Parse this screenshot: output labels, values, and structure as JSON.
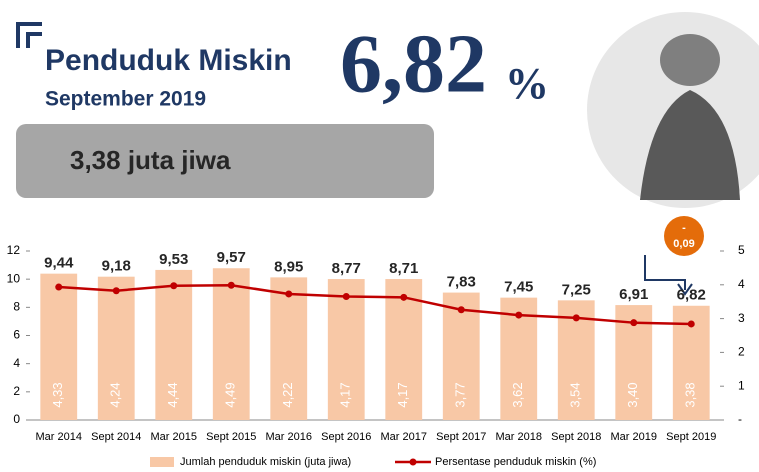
{
  "header": {
    "title": "Penduduk Miskin",
    "subtitle": "September 2019",
    "big_value": "6,82",
    "big_unit": "%",
    "box_text": "3,38 juta jiwa",
    "change_sign": "-",
    "change_value": "0,09"
  },
  "chart_data": {
    "type": "bar-line",
    "categories": [
      "Mar 2014",
      "Sept 2014",
      "Mar 2015",
      "Sept 2015",
      "Mar 2016",
      "Sept 2016",
      "Mar 2017",
      "Sept 2017",
      "Mar 2018",
      "Sept 2018",
      "Mar 2019",
      "Sept 2019"
    ],
    "series": [
      {
        "name": "Jumlah penduduk miskin (juta jiwa)",
        "color": "#f8c8a6",
        "axis": "y2",
        "kind": "bar",
        "values": [
          4.33,
          4.24,
          4.44,
          4.49,
          4.22,
          4.17,
          4.17,
          3.77,
          3.62,
          3.54,
          3.4,
          3.38
        ],
        "value_labels": [
          "4,33",
          "4,24",
          "4,44",
          "4,49",
          "4,22",
          "4,17",
          "4,17",
          "3,77",
          "3,62",
          "3,54",
          "3,40",
          "3,38"
        ]
      },
      {
        "name": "Persentase penduduk miskin (%)",
        "color": "#c00000",
        "kind": "line",
        "values": [
          9.44,
          9.18,
          9.53,
          9.57,
          8.95,
          8.77,
          8.71,
          7.83,
          7.45,
          7.25,
          6.91,
          6.82
        ],
        "value_labels": [
          "9,44",
          "9,18",
          "9,53",
          "9,57",
          "8,95",
          "8,77",
          "8,71",
          "7,83",
          "7,45",
          "7,25",
          "6,91",
          "6,82"
        ]
      }
    ],
    "ylim": [
      0,
      12
    ],
    "yticks": [
      0,
      2,
      4,
      6,
      8,
      10,
      12
    ],
    "y2lim": [
      0,
      5
    ],
    "y2ticks": [
      {
        "value": 0,
        "label": "-"
      },
      1,
      2,
      3,
      4,
      5
    ],
    "grid": false,
    "legend": "bottom"
  }
}
